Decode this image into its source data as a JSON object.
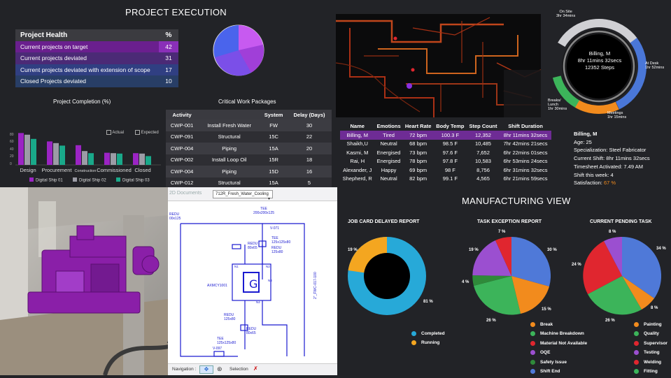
{
  "header": {
    "title": "PROJECT EXECUTION",
    "manufacturing_title": "MANUFACTURING VIEW"
  },
  "project_health": {
    "heading": "Project Health",
    "pct_heading": "%",
    "rows": [
      {
        "label": "Current projects on target",
        "value": "42",
        "color": "#6a1f8e"
      },
      {
        "label": "Current projects  deviated",
        "value": "31",
        "color": "#4b2a76"
      },
      {
        "label": "Current projects  deviated  with extension of scope",
        "value": "17",
        "color": "#303f82"
      },
      {
        "label": "Closed Projects deviated",
        "value": "10",
        "color": "#283e66"
      }
    ]
  },
  "critical_work": {
    "title": "Critical Work Packages",
    "columns": [
      "Activity",
      "",
      "System",
      "Delay (Days)"
    ],
    "rows": [
      [
        "CWP-001",
        "Install Fresh Water",
        "FW",
        "30"
      ],
      [
        "CWP-091",
        "Structural",
        "15C",
        "22"
      ],
      [
        "CWP-004",
        "Piping",
        "15A",
        "20"
      ],
      [
        "CWP-002",
        "Install Loop Oil",
        "15R",
        "18"
      ],
      [
        "CWP-004",
        "Piping",
        "15D",
        "16"
      ],
      [
        "CWP-012",
        "Structural",
        "15A",
        "5"
      ]
    ]
  },
  "completion_chart": {
    "title": "Project Completion (%)",
    "legend_actual": "Actual",
    "legend_expected": "Expected",
    "ticks": [
      "80",
      "60",
      "40",
      "20",
      "0"
    ]
  },
  "chart_data": {
    "type": "bar",
    "title": "Project Completion (%)",
    "categories": [
      "Design",
      "Procurement",
      "Construction",
      "Commissioned",
      "Closed"
    ],
    "ylim": [
      0,
      80
    ],
    "series": [
      {
        "name": "Digital Ship 01",
        "values": [
          76,
          56,
          47,
          29,
          28
        ],
        "color": "#9b24c4"
      },
      {
        "name": "Digital Ship 02",
        "values": [
          72,
          52,
          33,
          28,
          27
        ],
        "color": "#9c9ca6"
      },
      {
        "name": "Digital Ship 03",
        "values": [
          62,
          46,
          28,
          27,
          21
        ],
        "color": "#19a98a"
      }
    ]
  },
  "workers": {
    "columns": [
      "Name",
      "Emotions",
      "Heart Rate",
      "Body Temp",
      "Step Count",
      "Shift Duration"
    ],
    "rows": [
      [
        "Billing, M",
        "Tired",
        "72 bpm",
        "100.3 F",
        "12,352",
        "8hr 11mins 32secs"
      ],
      [
        "Shaikh,U",
        "Neutral",
        "68 bpm",
        "98.5 F",
        "10,485",
        "7hr 42mins 21secs"
      ],
      [
        "Kasmi, M",
        "Energised",
        "73 bpm",
        "97.6 F",
        "7,652",
        "6hr 22mins 01secs"
      ],
      [
        "Rai, H",
        "Energised",
        "78 bpm",
        "97.8 F",
        "10,583",
        "6hr 53mins 24secs"
      ],
      [
        "Alexander, J",
        "Happy",
        "69 bpm",
        "98 F",
        "8,756",
        "6hr 31mins 32secs"
      ],
      [
        "Shepherd, R",
        "Neutral",
        "82 bpm",
        "99.1 F",
        "4,565",
        "6hr 21mins 59secs"
      ]
    ]
  },
  "shift_ring": {
    "center_name": "Billing, M",
    "center_time": "8hr 11mins 32secs",
    "center_steps": "12352 Steps",
    "labels": {
      "on_site": "On Site",
      "on_site_time": "3hr 34mins",
      "at_desk": "At Desk",
      "at_desk_time": "1hr 52mins",
      "meetings": "Meetings",
      "meetings_time": "1hr 15mins",
      "breaks": "Breaks/",
      "breaks2": "Lunch",
      "breaks_time": "1hr 30mins"
    }
  },
  "worker_detail": {
    "name": "Billing, M",
    "age": "Age:  25",
    "specialization": "Specialization:  Steel Fabricator",
    "current_shift": "Current Shift:  8hr 11mins 32secs",
    "timesheet": "Timesheet Activated:   7.49 AM",
    "shift_week": "Shift this week:  4",
    "satisfaction_label": "Satisfaction:",
    "satisfaction_value": "67  %"
  },
  "pid": {
    "tab_label": "2D Documents",
    "dropdown": "712R_Fresh_Water_Cooling",
    "navigation": "Navigation :",
    "selection": "Selection",
    "labels": [
      "REDU",
      "00x125",
      "TEE",
      "200x200x125",
      "V-071",
      "TEE",
      "125x125x80",
      "REDU",
      "80x65",
      "REDU",
      "125x80",
      "AXMCY1001",
      "N1",
      "N2",
      "N3",
      "N4",
      "REDU",
      "125x80",
      "REDU",
      "80x65",
      "TEE",
      "125x125x80",
      "V-097",
      "2\"_FWC-017-100"
    ]
  },
  "job_card": {
    "title": "JOB CARD DELAYED REPORT",
    "pct_running": "19 %",
    "pct_completed": "81 %",
    "legend": [
      {
        "label": "Completed",
        "color": "#27a9d8"
      },
      {
        "label": "Running",
        "color": "#f4a620"
      }
    ]
  },
  "task_exception": {
    "title": "TASK EXCEPTION REPORT",
    "pcts": [
      "7 %",
      "30 %",
      "19 %",
      "4 %",
      "15 %",
      "26 %"
    ],
    "legend": [
      {
        "label": "Break",
        "color": "#f28b1d"
      },
      {
        "label": "Machine Breakdown",
        "color": "#3cb45a"
      },
      {
        "label": "Material Not Available",
        "color": "#e0262f"
      },
      {
        "label": "OQE",
        "color": "#9b4fd0"
      },
      {
        "label": "Safety Issue",
        "color": "#2f8a3a"
      },
      {
        "label": "Shift End",
        "color": "#4f79d8"
      }
    ]
  },
  "pending_task": {
    "title": "CURRENT PENDING TASK",
    "pcts": [
      "8 %",
      "34 %",
      "24 %",
      "8 %",
      "26 %"
    ],
    "legend": [
      {
        "label": "Painting",
        "color": "#f28b1d"
      },
      {
        "label": "Quality",
        "color": "#3cb45a"
      },
      {
        "label": "Supervisor",
        "color": "#e0262f"
      },
      {
        "label": "Testing",
        "color": "#9b4fd0"
      },
      {
        "label": "Welding",
        "color": "#e0262f"
      },
      {
        "label": "Fitting",
        "color": "#3cb45a"
      }
    ]
  }
}
